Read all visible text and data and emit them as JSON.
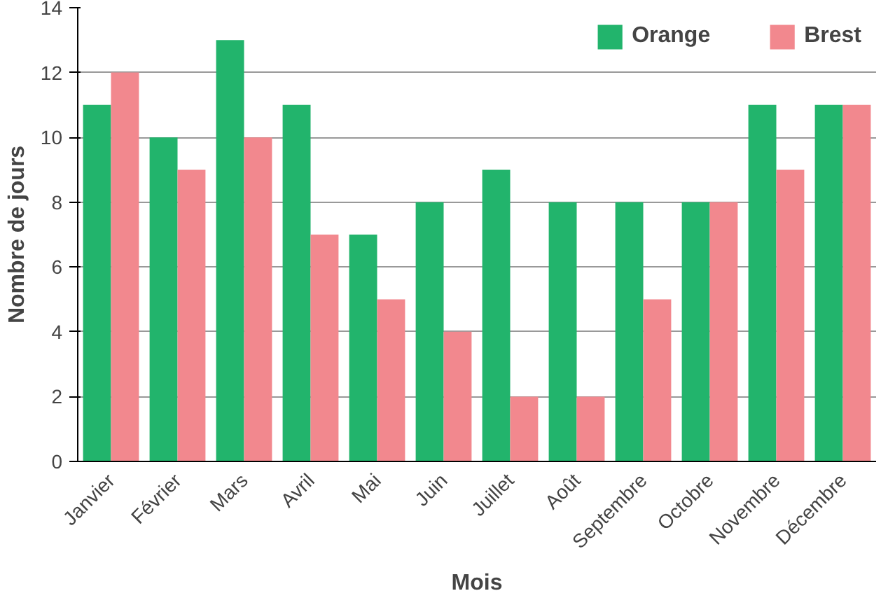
{
  "chart_data": {
    "type": "bar",
    "xlabel": "Mois",
    "ylabel": "Nombre de jours",
    "categories": [
      "Janvier",
      "Février",
      "Mars",
      "Avril",
      "Mai",
      "Juin",
      "Juillet",
      "Août",
      "Septembre",
      "Octobre",
      "Novembre",
      "Décembre"
    ],
    "series": [
      {
        "name": "Orange",
        "color": "#22b46c",
        "values": [
          11,
          10,
          13,
          11,
          7,
          8,
          9,
          8,
          8,
          8,
          11,
          11
        ]
      },
      {
        "name": "Brest",
        "color": "#f2888e",
        "values": [
          12,
          9,
          10,
          7,
          5,
          4,
          2,
          2,
          5,
          8,
          9,
          11
        ]
      }
    ],
    "ylim": [
      0,
      14
    ],
    "yticks": [
      0,
      2,
      4,
      6,
      8,
      10,
      12,
      14
    ],
    "grid": "y",
    "legend": "top right"
  }
}
